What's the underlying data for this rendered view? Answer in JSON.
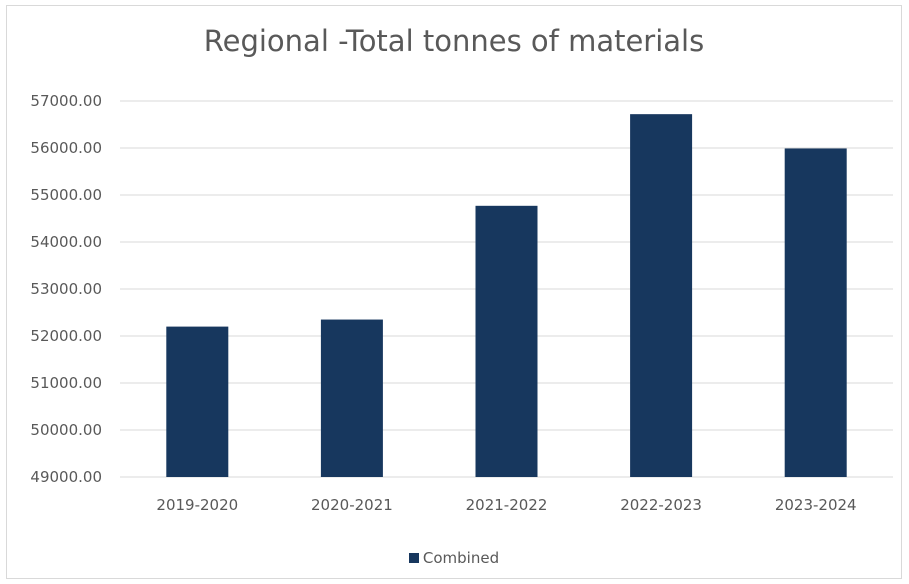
{
  "chart_data": {
    "type": "bar",
    "title": "Regional -Total tonnes of materials",
    "categories": [
      "2019-2020",
      "2020-2021",
      "2021-2022",
      "2022-2023",
      "2023-2024"
    ],
    "series": [
      {
        "name": "Combined",
        "values": [
          52200,
          52350,
          54770,
          56720,
          55990
        ],
        "color": "#17375e"
      }
    ],
    "ylim": [
      49000,
      57000
    ],
    "yticks": [
      "49000.00",
      "50000.00",
      "51000.00",
      "52000.00",
      "53000.00",
      "54000.00",
      "55000.00",
      "56000.00",
      "57000.00"
    ],
    "grid": true,
    "legend_position": "bottom"
  }
}
